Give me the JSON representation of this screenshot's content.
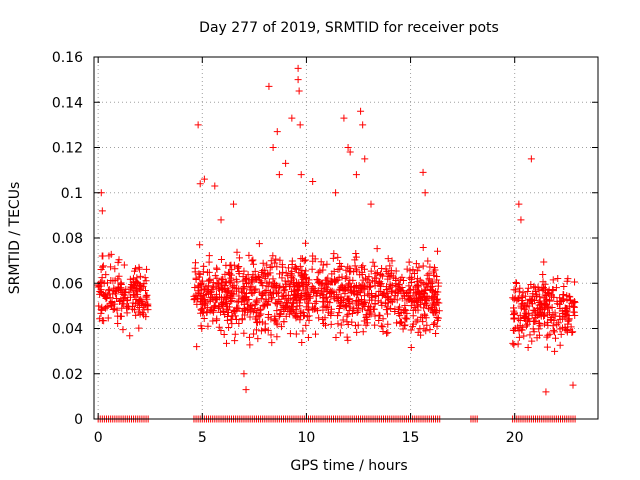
{
  "chart_data": {
    "type": "scatter",
    "title": "Day 277 of 2019, SRMTID for receiver pots",
    "xlabel": "GPS time / hours",
    "ylabel": "SRMTID / TECUs",
    "xlim": [
      -0.2,
      24
    ],
    "ylim": [
      0,
      0.16
    ],
    "xticks": [
      {
        "value": 0,
        "label": "0"
      },
      {
        "value": 5,
        "label": "5"
      },
      {
        "value": 10,
        "label": "10"
      },
      {
        "value": 15,
        "label": "15"
      },
      {
        "value": 20,
        "label": "20"
      }
    ],
    "yticks": [
      {
        "value": 0,
        "label": "0"
      },
      {
        "value": 0.02,
        "label": "0.02"
      },
      {
        "value": 0.04,
        "label": "0.04"
      },
      {
        "value": 0.06,
        "label": "0.06"
      },
      {
        "value": 0.08,
        "label": "0.08"
      },
      {
        "value": 0.1,
        "label": "0.1"
      },
      {
        "value": 0.12,
        "label": "0.12"
      },
      {
        "value": 0.14,
        "label": "0.14"
      },
      {
        "value": 0.16,
        "label": "0.16"
      }
    ],
    "grid": true,
    "marker": "+",
    "color": "#ff0000",
    "clusters": [
      {
        "x_start": 0.0,
        "x_end": 2.4,
        "center": 0.055,
        "spread": 0.012,
        "count": 190
      },
      {
        "x_start": 4.6,
        "x_end": 16.4,
        "center": 0.055,
        "spread": 0.014,
        "count": 1150
      },
      {
        "x_start": 19.9,
        "x_end": 22.9,
        "center": 0.048,
        "spread": 0.012,
        "count": 260
      }
    ],
    "highlights": [
      {
        "x": 0.15,
        "y": 0.1
      },
      {
        "x": 0.2,
        "y": 0.092
      },
      {
        "x": 4.8,
        "y": 0.13
      },
      {
        "x": 4.9,
        "y": 0.104
      },
      {
        "x": 5.1,
        "y": 0.106
      },
      {
        "x": 5.6,
        "y": 0.103
      },
      {
        "x": 5.9,
        "y": 0.088
      },
      {
        "x": 6.5,
        "y": 0.095
      },
      {
        "x": 7.1,
        "y": 0.013
      },
      {
        "x": 8.2,
        "y": 0.147
      },
      {
        "x": 8.4,
        "y": 0.12
      },
      {
        "x": 8.6,
        "y": 0.127
      },
      {
        "x": 8.7,
        "y": 0.108
      },
      {
        "x": 9.0,
        "y": 0.113
      },
      {
        "x": 9.3,
        "y": 0.133
      },
      {
        "x": 9.6,
        "y": 0.155
      },
      {
        "x": 9.6,
        "y": 0.15
      },
      {
        "x": 9.65,
        "y": 0.145
      },
      {
        "x": 9.7,
        "y": 0.13
      },
      {
        "x": 9.75,
        "y": 0.108
      },
      {
        "x": 10.3,
        "y": 0.105
      },
      {
        "x": 11.4,
        "y": 0.1
      },
      {
        "x": 11.8,
        "y": 0.133
      },
      {
        "x": 12.0,
        "y": 0.12
      },
      {
        "x": 12.1,
        "y": 0.118
      },
      {
        "x": 12.4,
        "y": 0.108
      },
      {
        "x": 12.6,
        "y": 0.136
      },
      {
        "x": 12.7,
        "y": 0.13
      },
      {
        "x": 12.8,
        "y": 0.115
      },
      {
        "x": 13.1,
        "y": 0.095
      },
      {
        "x": 15.6,
        "y": 0.109
      },
      {
        "x": 15.7,
        "y": 0.1
      },
      {
        "x": 20.2,
        "y": 0.095
      },
      {
        "x": 20.3,
        "y": 0.088
      },
      {
        "x": 20.8,
        "y": 0.115
      },
      {
        "x": 21.5,
        "y": 0.012
      },
      {
        "x": 22.8,
        "y": 0.015
      },
      {
        "x": 7.0,
        "y": 0.02
      }
    ],
    "zero_values": {
      "y": 0,
      "segments": [
        [
          0.0,
          2.4
        ],
        [
          4.6,
          16.4
        ],
        [
          17.9,
          18.2
        ],
        [
          19.9,
          22.9
        ]
      ],
      "step": 0.1
    }
  }
}
